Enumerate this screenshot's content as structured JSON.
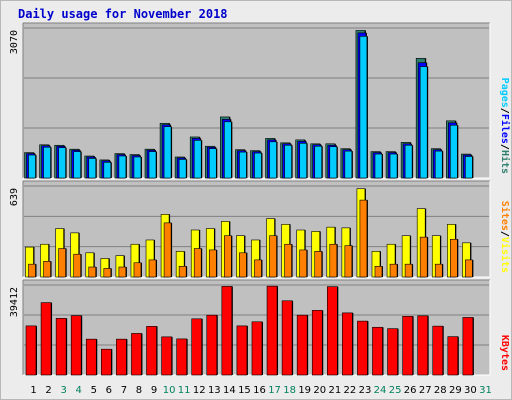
{
  "title": "Daily usage for November 2018",
  "colors": {
    "background": "#ececec",
    "panel": "#c0c0c0",
    "pages": "#00ccff",
    "files": "#0000ff",
    "hits": "#2f7f6f",
    "visits": "#ffff00",
    "sites": "#ff8000",
    "kbytes": "#ff0000",
    "weekend_label": "#00805c",
    "weekday_label": "#000000"
  },
  "chart_data": [
    {
      "type": "bar",
      "name": "hits-files-pages",
      "categories": [
        "1",
        "2",
        "3",
        "4",
        "5",
        "6",
        "7",
        "8",
        "9",
        "10",
        "11",
        "12",
        "13",
        "14",
        "15",
        "16",
        "17",
        "18",
        "19",
        "20",
        "21",
        "22",
        "23",
        "24",
        "25",
        "26",
        "27",
        "28",
        "29",
        "30",
        "31"
      ],
      "ymax_label": "3070",
      "ylim": [
        0,
        3070
      ],
      "legend": [
        {
          "label": "Pages",
          "color": "#00ccff"
        },
        {
          "label": "/",
          "color": "#000000"
        },
        {
          "label": "Files",
          "color": "#0000ff"
        },
        {
          "label": "/",
          "color": "#000000"
        },
        {
          "label": "Hits",
          "color": "#2f7f6f"
        }
      ],
      "series": [
        {
          "name": "Hits",
          "color": "#2f7f6f",
          "values": [
            520,
            680,
            670,
            590,
            450,
            370,
            500,
            480,
            590,
            1120,
            430,
            840,
            650,
            1250,
            580,
            560,
            810,
            720,
            780,
            700,
            700,
            600,
            3020,
            540,
            540,
            730,
            2450,
            600,
            1170,
            490,
            null
          ]
        },
        {
          "name": "Files",
          "color": "#0000ff",
          "values": [
            500,
            660,
            650,
            570,
            430,
            350,
            480,
            460,
            570,
            1090,
            410,
            810,
            630,
            1200,
            560,
            540,
            780,
            700,
            750,
            680,
            670,
            580,
            2970,
            520,
            520,
            700,
            2360,
            580,
            1130,
            470,
            null
          ]
        },
        {
          "name": "Pages",
          "color": "#00ccff",
          "values": [
            470,
            630,
            620,
            540,
            400,
            320,
            450,
            430,
            540,
            1050,
            380,
            770,
            600,
            1150,
            530,
            510,
            740,
            670,
            710,
            650,
            640,
            550,
            2900,
            490,
            490,
            670,
            2280,
            550,
            1080,
            440,
            null
          ]
        }
      ]
    },
    {
      "type": "bar",
      "name": "visits-sites",
      "categories": [
        "1",
        "2",
        "3",
        "4",
        "5",
        "6",
        "7",
        "8",
        "9",
        "10",
        "11",
        "12",
        "13",
        "14",
        "15",
        "16",
        "17",
        "18",
        "19",
        "20",
        "21",
        "22",
        "23",
        "24",
        "25",
        "26",
        "27",
        "28",
        "29",
        "30",
        "31"
      ],
      "ymax_label": "639",
      "ylim": [
        0,
        639
      ],
      "legend": [
        {
          "label": "Sites",
          "color": "#ff8000"
        },
        {
          "label": "/",
          "color": "#000000"
        },
        {
          "label": "Visits",
          "color": "#ffff00"
        }
      ],
      "series": [
        {
          "name": "Visits",
          "color": "#ffff00",
          "values": [
            210,
            230,
            340,
            310,
            170,
            130,
            150,
            230,
            260,
            440,
            180,
            330,
            340,
            390,
            290,
            260,
            410,
            370,
            330,
            320,
            350,
            345,
            620,
            180,
            230,
            290,
            480,
            290,
            370,
            240,
            null
          ]
        },
        {
          "name": "Sites",
          "color": "#ff8000",
          "values": [
            90,
            110,
            200,
            160,
            70,
            60,
            70,
            100,
            120,
            380,
            75,
            200,
            190,
            290,
            170,
            120,
            290,
            230,
            190,
            180,
            230,
            220,
            540,
            75,
            90,
            90,
            280,
            90,
            265,
            120,
            null
          ]
        }
      ]
    },
    {
      "type": "bar",
      "name": "kbytes",
      "categories": [
        "1",
        "2",
        "3",
        "4",
        "5",
        "6",
        "7",
        "8",
        "9",
        "10",
        "11",
        "12",
        "13",
        "14",
        "15",
        "16",
        "17",
        "18",
        "19",
        "20",
        "21",
        "22",
        "23",
        "24",
        "25",
        "26",
        "27",
        "28",
        "29",
        "30",
        "31"
      ],
      "ymax_label": "39412",
      "ylim": [
        0,
        39412
      ],
      "legend": [
        {
          "label": "KBytes",
          "color": "#ff0000"
        }
      ],
      "series": [
        {
          "name": "KBytes",
          "color": "#ff0000",
          "values": [
            21500,
            31700,
            24800,
            26000,
            15700,
            11300,
            15700,
            18200,
            21300,
            16700,
            15800,
            24600,
            26200,
            38800,
            21500,
            23300,
            38900,
            32500,
            26200,
            28300,
            38700,
            27200,
            23600,
            20900,
            20300,
            25700,
            25900,
            21400,
            16800,
            25200,
            null
          ]
        }
      ]
    }
  ],
  "weekend_days": [
    "3",
    "4",
    "10",
    "11",
    "17",
    "18",
    "24",
    "25",
    "31"
  ]
}
